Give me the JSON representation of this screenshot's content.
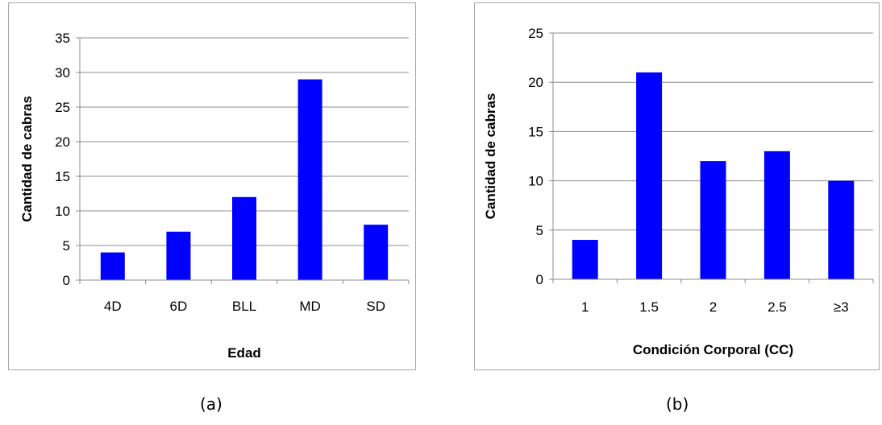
{
  "chart_data": [
    {
      "type": "bar",
      "categories": [
        "4D",
        "6D",
        "BLL",
        "MD",
        "SD"
      ],
      "values": [
        4,
        7,
        12,
        29,
        8
      ],
      "xlabel": "Edad",
      "ylabel": "Cantidad de cabras",
      "ylim": [
        0,
        35
      ],
      "yticks": [
        "0",
        "5",
        "10",
        "15",
        "20",
        "25",
        "30",
        "35"
      ],
      "grid": true,
      "bar_color": "#0000ff",
      "caption": "(a)"
    },
    {
      "type": "bar",
      "categories": [
        "1",
        "1.5",
        "2",
        "2.5",
        "≥3"
      ],
      "values": [
        4,
        21,
        12,
        13,
        10
      ],
      "xlabel": "Condición Corporal (CC)",
      "ylabel": "Cantidad de cabras",
      "ylim": [
        0,
        25
      ],
      "yticks": [
        "0",
        "5",
        "10",
        "15",
        "20",
        "25"
      ],
      "grid": true,
      "bar_color": "#0000ff",
      "caption": "(b)"
    }
  ]
}
